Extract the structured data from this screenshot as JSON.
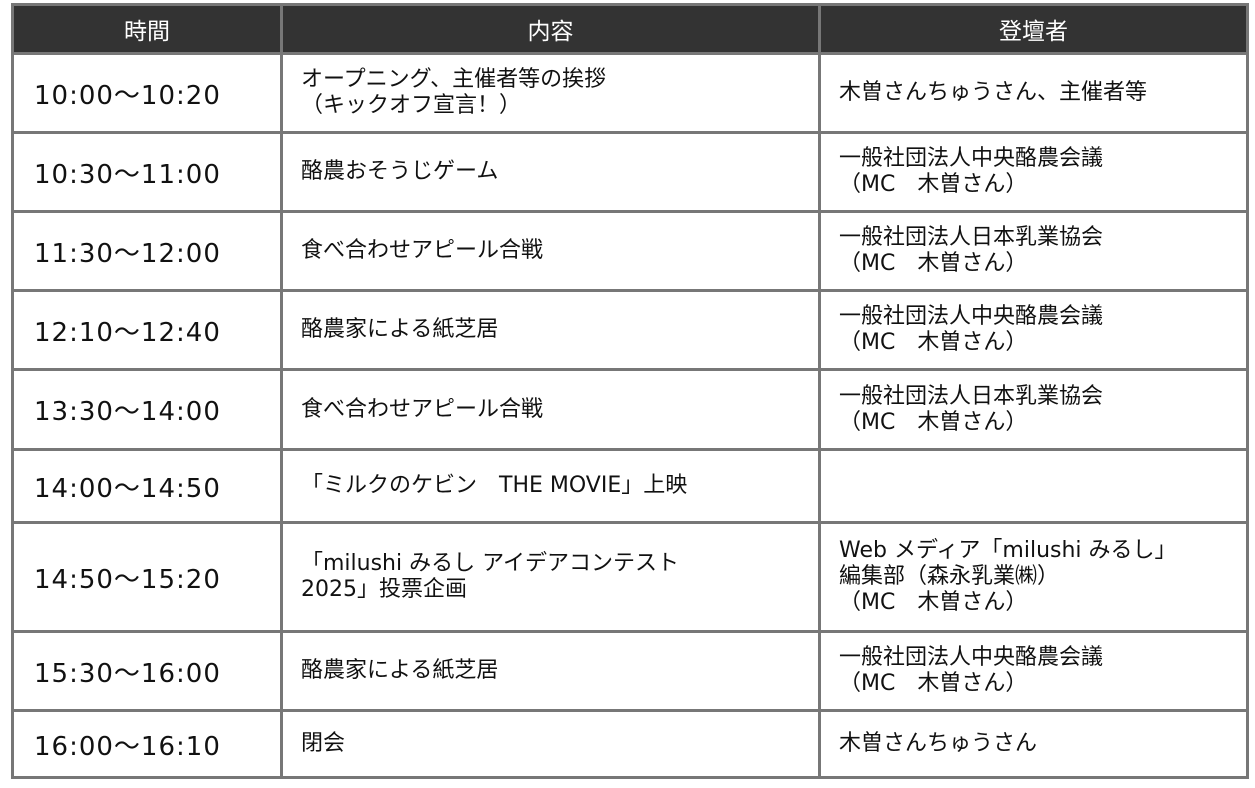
{
  "headers": {
    "time": "時間",
    "content": "内容",
    "presenter": "登壇者"
  },
  "rows": [
    {
      "time": "10:00〜10:20",
      "content": "オープニング、主催者等の挨拶\n（キックオフ宣言！）",
      "presenter": "木曽さんちゅうさん、主催者等"
    },
    {
      "time": "10:30〜11:00",
      "content": "酪農おそうじゲーム",
      "presenter": "一般社団法人中央酪農会議\n（MC　木曽さん）"
    },
    {
      "time": "11:30〜12:00",
      "content": "食べ合わせアピール合戦",
      "presenter": "一般社団法人日本乳業協会\n（MC　木曽さん）"
    },
    {
      "time": "12:10〜12:40",
      "content": "酪農家による紙芝居",
      "presenter": "一般社団法人中央酪農会議\n（MC　木曽さん）"
    },
    {
      "time": "13:30〜14:00",
      "content": "食べ合わせアピール合戦",
      "presenter": "一般社団法人日本乳業協会\n（MC　木曽さん）"
    },
    {
      "time": "14:00〜14:50",
      "content": "「ミルクのケビン　THE MOVIE」上映",
      "presenter": ""
    },
    {
      "time": "14:50〜15:20",
      "content": "「milushi みるし アイデアコンテスト\n2025」投票企画",
      "presenter": "Web メディア「milushi みるし」\n編集部（森永乳業㈱）\n（MC　木曽さん）"
    },
    {
      "time": "15:30〜16:00",
      "content": "酪農家による紙芝居",
      "presenter": "一般社団法人中央酪農会議\n（MC　木曽さん）"
    },
    {
      "time": "16:00〜16:10",
      "content": "閉会",
      "presenter": "木曽さんちゅうさん"
    }
  ]
}
